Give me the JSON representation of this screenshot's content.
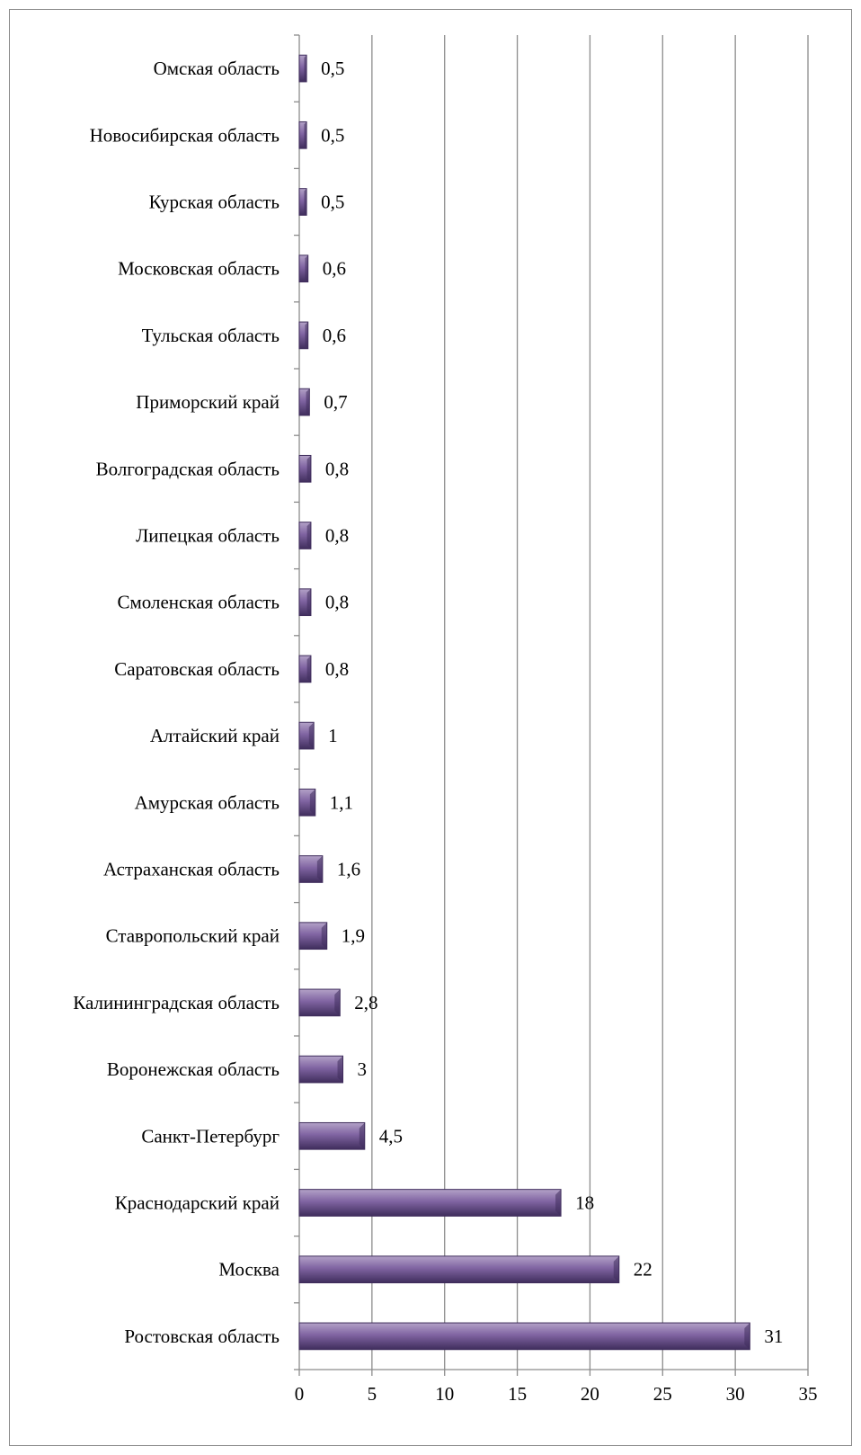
{
  "chart_data": {
    "type": "bar",
    "orientation": "horizontal",
    "categories": [
      "Ростовская область",
      "Москва",
      "Краснодарский край",
      "Санкт-Петербург",
      "Воронежская область",
      "Калининградская область",
      "Ставропольский край",
      "Астраханская область",
      "Амурская область",
      "Алтайский край",
      "Саратовская область",
      "Смоленская область",
      "Липецкая область",
      "Волгоградская область",
      "Приморский край",
      "Тульская область",
      "Московская область",
      "Курская область",
      "Новосибирская область",
      "Омская область"
    ],
    "values": [
      31,
      22,
      18,
      4.5,
      3,
      2.8,
      1.9,
      1.6,
      1.1,
      1,
      0.8,
      0.8,
      0.8,
      0.8,
      0.7,
      0.6,
      0.6,
      0.5,
      0.5,
      0.5
    ],
    "value_labels": [
      "31",
      "22",
      "18",
      "4,5",
      "3",
      "2,8",
      "1,9",
      "1,6",
      "1,1",
      "1",
      "0,8",
      "0,8",
      "0,8",
      "0,8",
      "0,7",
      "0,6",
      "0,6",
      "0,5",
      "0,5",
      "0,5"
    ],
    "xticks": [
      "0",
      "5",
      "10",
      "15",
      "20",
      "25",
      "30",
      "35"
    ],
    "xlim": [
      0,
      35
    ],
    "grid": "vertical",
    "title": "",
    "xlabel": "",
    "ylabel": "",
    "bar_color": "#8064a2",
    "bar_dark_color": "#3f2d5c",
    "bar_light_color": "#b3a2c7",
    "grid_color": "#8c8c8c"
  }
}
